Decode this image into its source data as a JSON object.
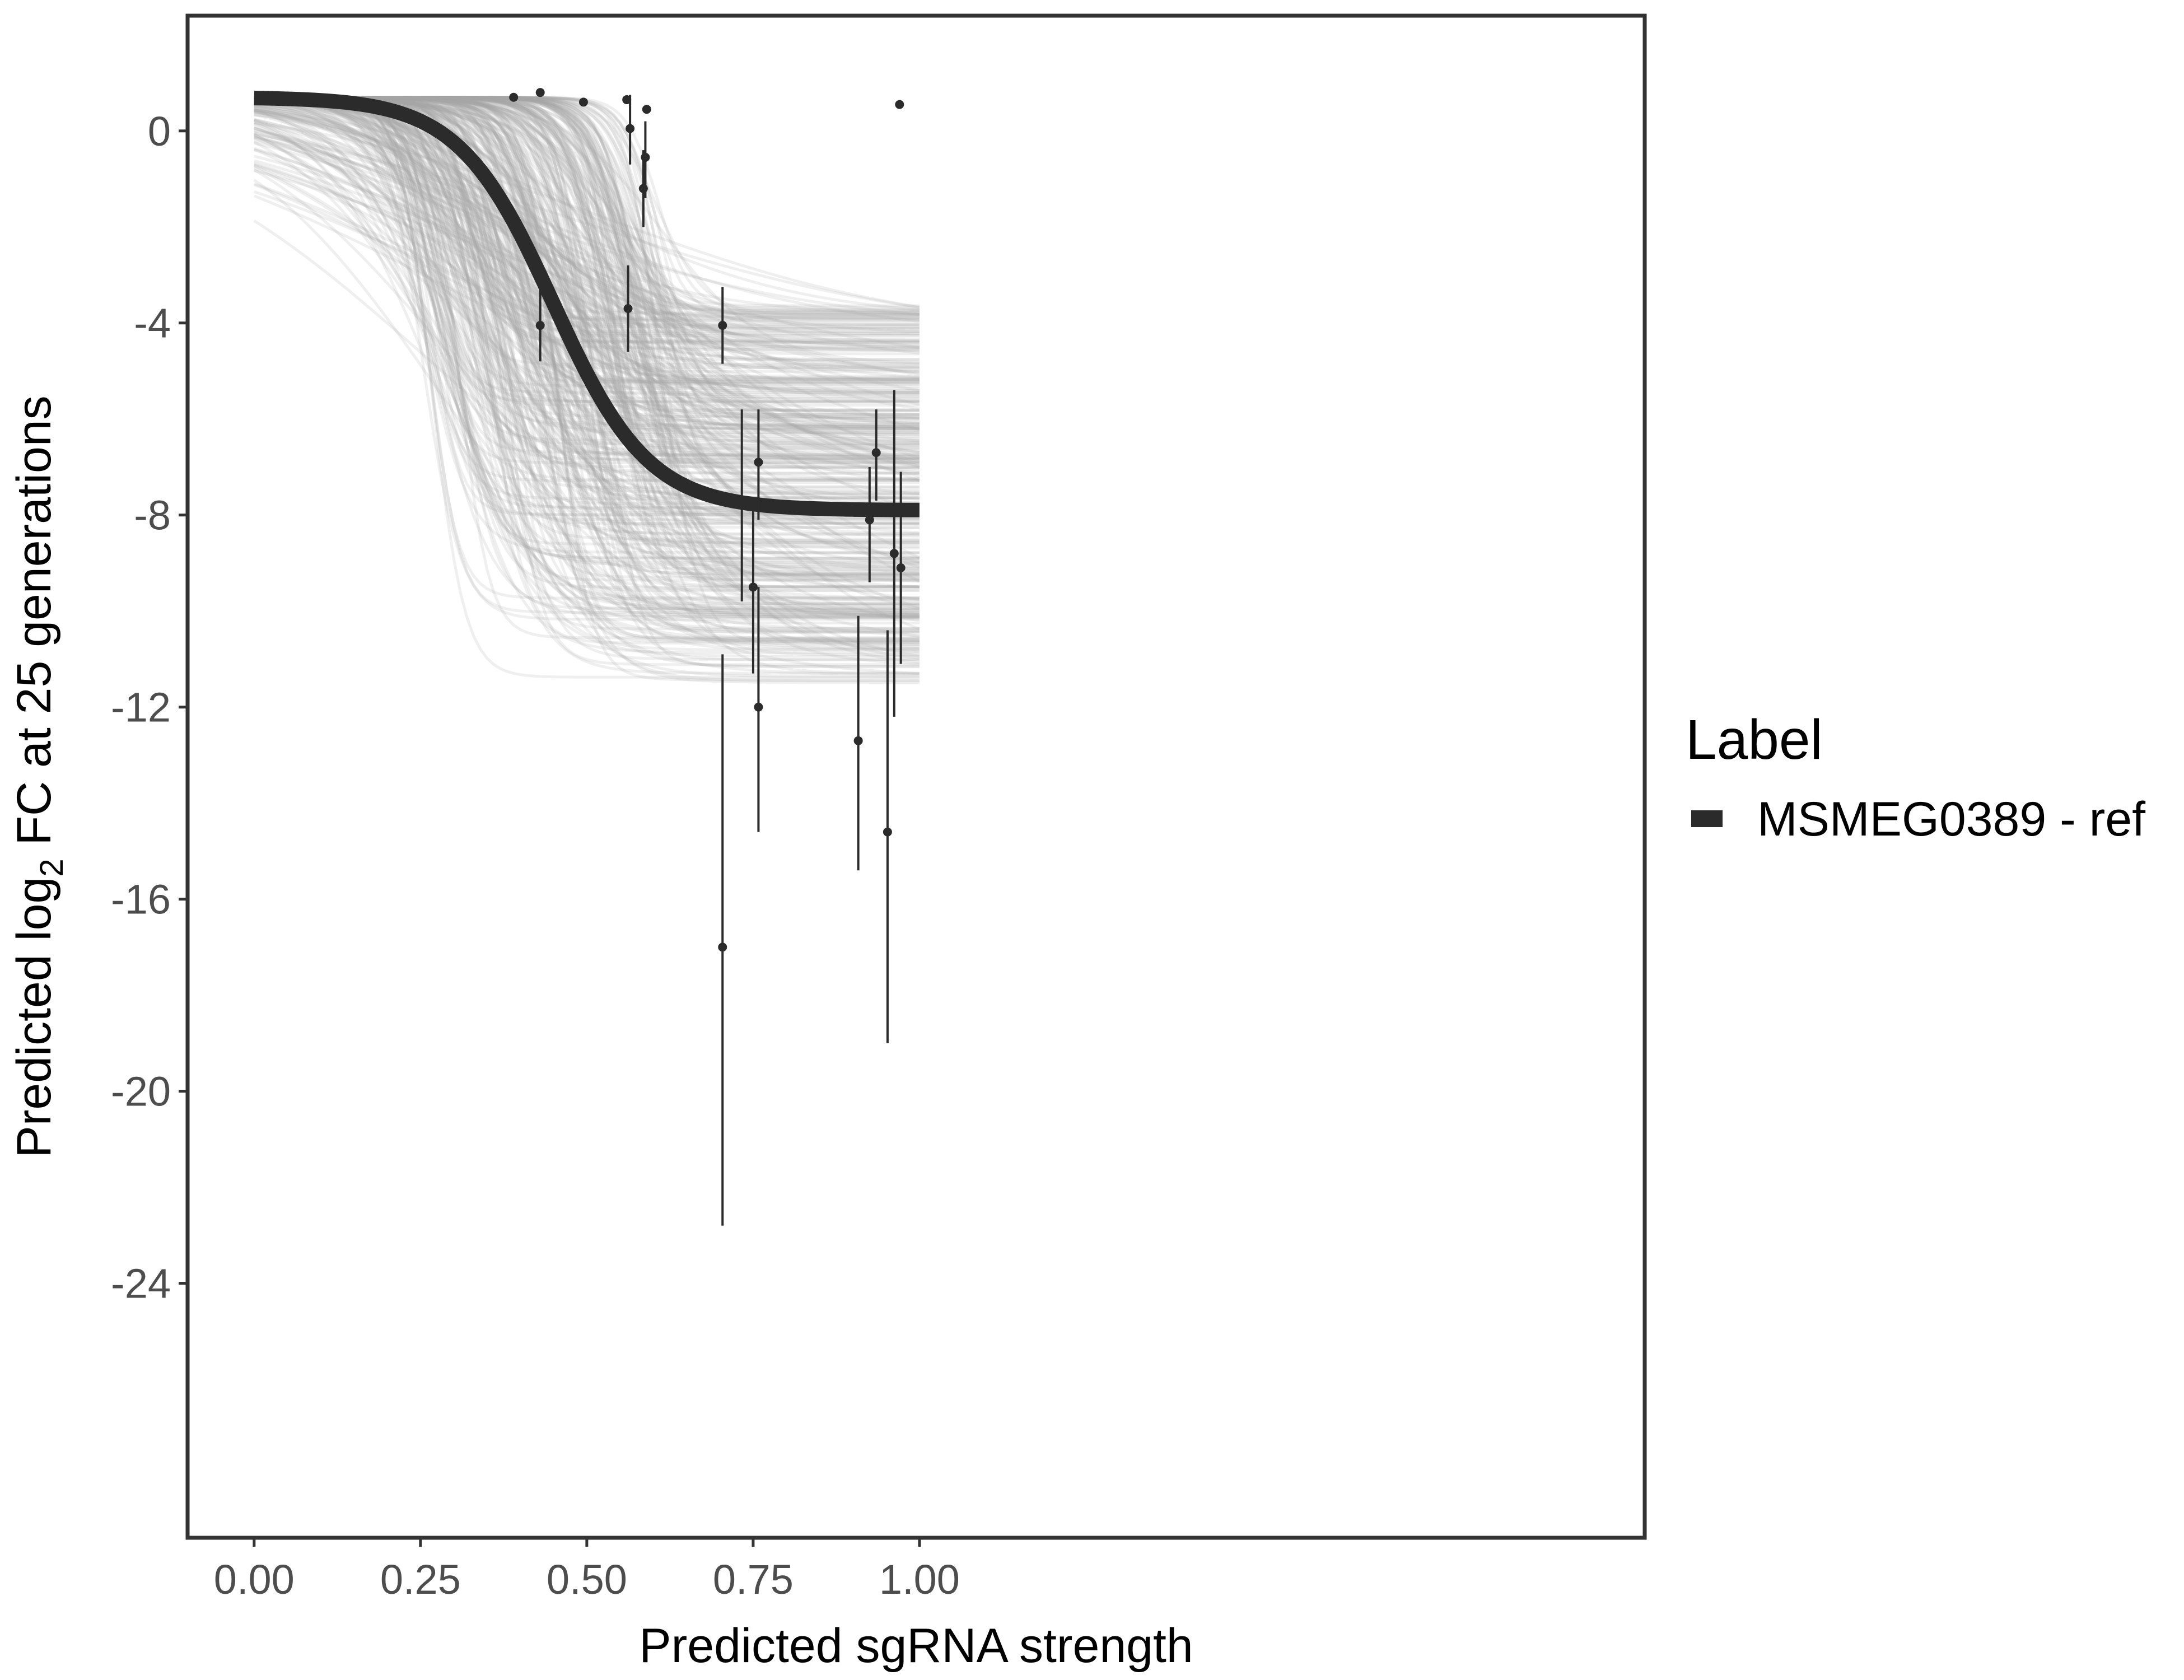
{
  "chart_data": {
    "type": "line",
    "xlabel": "Predicted sgRNA strength",
    "ylabel": {
      "prefix": "Predicted  log",
      "subscript": "2",
      "suffix": " FC at 25 generations"
    },
    "xlim": [
      -0.1,
      2.09
    ],
    "ylim": [
      -29.3,
      2.4
    ],
    "x_ticks": [
      0.0,
      0.25,
      0.5,
      0.75,
      1.0
    ],
    "x_tick_labels": [
      "0.00",
      "0.25",
      "0.50",
      "0.75",
      "1.00"
    ],
    "y_ticks": [
      0,
      -4,
      -8,
      -12,
      -16,
      -20,
      -24
    ],
    "y_tick_labels": [
      "0",
      "-4",
      "-8",
      "-12",
      "-16",
      "-20",
      "-24"
    ],
    "grid": false,
    "legend": {
      "title": "Label",
      "placement": "right",
      "entries": [
        {
          "name": "MSMEG0389 - ref",
          "color": "#2b2b2b"
        }
      ]
    },
    "colors": {
      "fit_line": "#2b2b2b",
      "posterior_draws": "#a9a9a9",
      "points": "#2b2b2b",
      "panel_border": "#333333"
    },
    "fit_curve": {
      "upper": 0.7,
      "lower": -7.9,
      "midpoint": 0.45,
      "slope": 14
    },
    "posterior_draws": {
      "count": 400,
      "upper": [
        0.7,
        0.7
      ],
      "lower": [
        -11.5,
        -3.6
      ],
      "midpoint": [
        0.25,
        0.62
      ],
      "slope": [
        3,
        45
      ]
    },
    "points": [
      {
        "x": 0.39,
        "y": 0.7
      },
      {
        "x": 0.43,
        "y": 0.8
      },
      {
        "x": 0.495,
        "y": 0.6
      },
      {
        "x": 0.56,
        "y": 0.65
      },
      {
        "x": 0.59,
        "y": 0.45
      },
      {
        "x": 0.97,
        "y": 0.55
      },
      {
        "x": 0.565,
        "y": 0.05,
        "lo": -0.7,
        "hi": 0.75
      },
      {
        "x": 0.585,
        "y": -1.2,
        "lo": -2.0,
        "hi": -0.4
      },
      {
        "x": 0.588,
        "y": -0.55,
        "lo": -1.4,
        "hi": 0.2
      },
      {
        "x": 0.43,
        "y": -4.05,
        "lo": -4.8,
        "hi": -3.2
      },
      {
        "x": 0.562,
        "y": -3.7,
        "lo": -4.6,
        "hi": -2.8
      },
      {
        "x": 0.704,
        "y": -4.05,
        "lo": -4.85,
        "hi": -3.25
      },
      {
        "x": 0.704,
        "y": -17.0,
        "lo": -22.8,
        "hi": -10.9
      },
      {
        "x": 0.733,
        "y": -7.8,
        "lo": -9.8,
        "hi": -5.8
      },
      {
        "x": 0.758,
        "y": -6.9,
        "lo": -8.1,
        "hi": -5.8
      },
      {
        "x": 0.75,
        "y": -9.5,
        "lo": -11.3,
        "hi": -7.8
      },
      {
        "x": 0.758,
        "y": -12.0,
        "lo": -14.6,
        "hi": -9.5
      },
      {
        "x": 0.908,
        "y": -12.7,
        "lo": -15.4,
        "hi": -10.1
      },
      {
        "x": 0.925,
        "y": -8.1,
        "lo": -9.4,
        "hi": -7.0
      },
      {
        "x": 0.935,
        "y": -6.7,
        "lo": -7.7,
        "hi": -5.8
      },
      {
        "x": 0.952,
        "y": -14.6,
        "lo": -19.0,
        "hi": -10.4
      },
      {
        "x": 0.962,
        "y": -8.8,
        "lo": -12.2,
        "hi": -5.4
      },
      {
        "x": 0.972,
        "y": -9.1,
        "lo": -11.1,
        "hi": -7.1
      }
    ]
  }
}
